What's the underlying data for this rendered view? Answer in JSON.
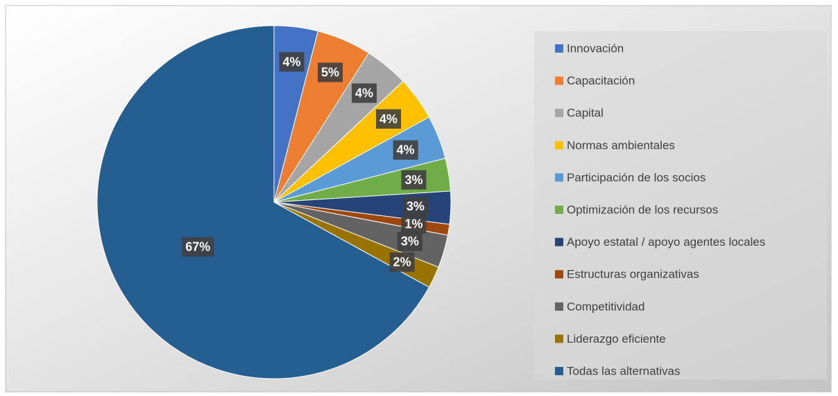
{
  "chart_data": {
    "type": "pie",
    "categories": [
      "Innovación",
      "Capacitación",
      "Capital",
      "Normas ambientales",
      "Participación de los socios",
      "Optimización de los recursos",
      "Apoyo estatal / apoyo agentes locales",
      "Estructuras organizativas",
      "Competitividad",
      "Liderazgo eficiente",
      "Todas las alternativas"
    ],
    "values": [
      4,
      5,
      4,
      4,
      4,
      3,
      3,
      1,
      3,
      2,
      67
    ],
    "value_labels": [
      "4%",
      "5%",
      "4%",
      "4%",
      "4%",
      "3%",
      "3%",
      "1%",
      "3%",
      "2%",
      "67%"
    ],
    "colors": [
      "#4472c4",
      "#ed7d31",
      "#a5a5a5",
      "#ffc000",
      "#5b9bd5",
      "#70ad47",
      "#264478",
      "#9e480e",
      "#636363",
      "#997300",
      "#255e91"
    ],
    "legend": "right"
  }
}
